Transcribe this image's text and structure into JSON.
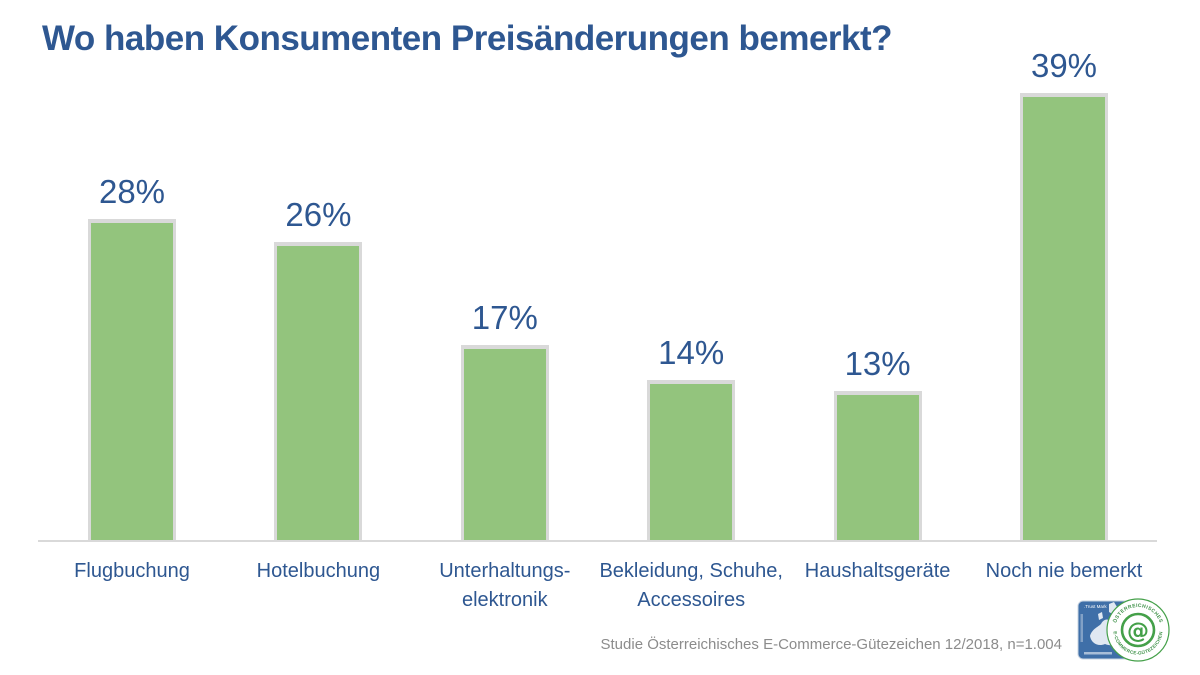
{
  "chart_data": {
    "type": "bar",
    "title": "Wo haben Konsumenten Preisänderungen bemerkt?",
    "categories": [
      "Flugbuchung",
      "Hotelbuchung",
      "Unterhaltungs-elektronik",
      "Bekleidung, Schuhe, Accessoires",
      "Haushaltsgeräte",
      "Noch nie bemerkt"
    ],
    "category_lines": [
      [
        "Flugbuchung"
      ],
      [
        "Hotelbuchung"
      ],
      [
        "Unterhaltungs-",
        "elektronik"
      ],
      [
        "Bekleidung, Schuhe,",
        "Accessoires"
      ],
      [
        "Haushaltsgeräte"
      ],
      [
        "Noch nie bemerkt"
      ]
    ],
    "values": [
      28,
      26,
      17,
      14,
      13,
      39
    ],
    "value_labels": [
      "28%",
      "26%",
      "17%",
      "14%",
      "13%",
      "39%"
    ],
    "unit": "%",
    "xlabel": "",
    "ylabel": "",
    "ylim": [
      0,
      42
    ],
    "grid": false,
    "legend": false,
    "bar_color": "#93c47d",
    "bar_border_color": "#d9d9d9",
    "label_color": "#2e5791"
  },
  "footer": {
    "source": "Studie Österreichisches E-Commerce-Gütezeichen 12/2018, n=1.004"
  },
  "logo": {
    "trust_mark_text": ".Trust Mark",
    "ring_text_top": "ÖSTERREICHISCHES",
    "ring_text_bottom": "E-COMMERCE-GÜTEZEICHEN",
    "center_symbol": "@",
    "badge_green": "#44a049",
    "rect_blue": "#3f6fa8"
  },
  "colors": {
    "title": "#2e5791",
    "background": "#ffffff",
    "axis": "#d9d9d9",
    "source_text": "#8c8c8c"
  }
}
